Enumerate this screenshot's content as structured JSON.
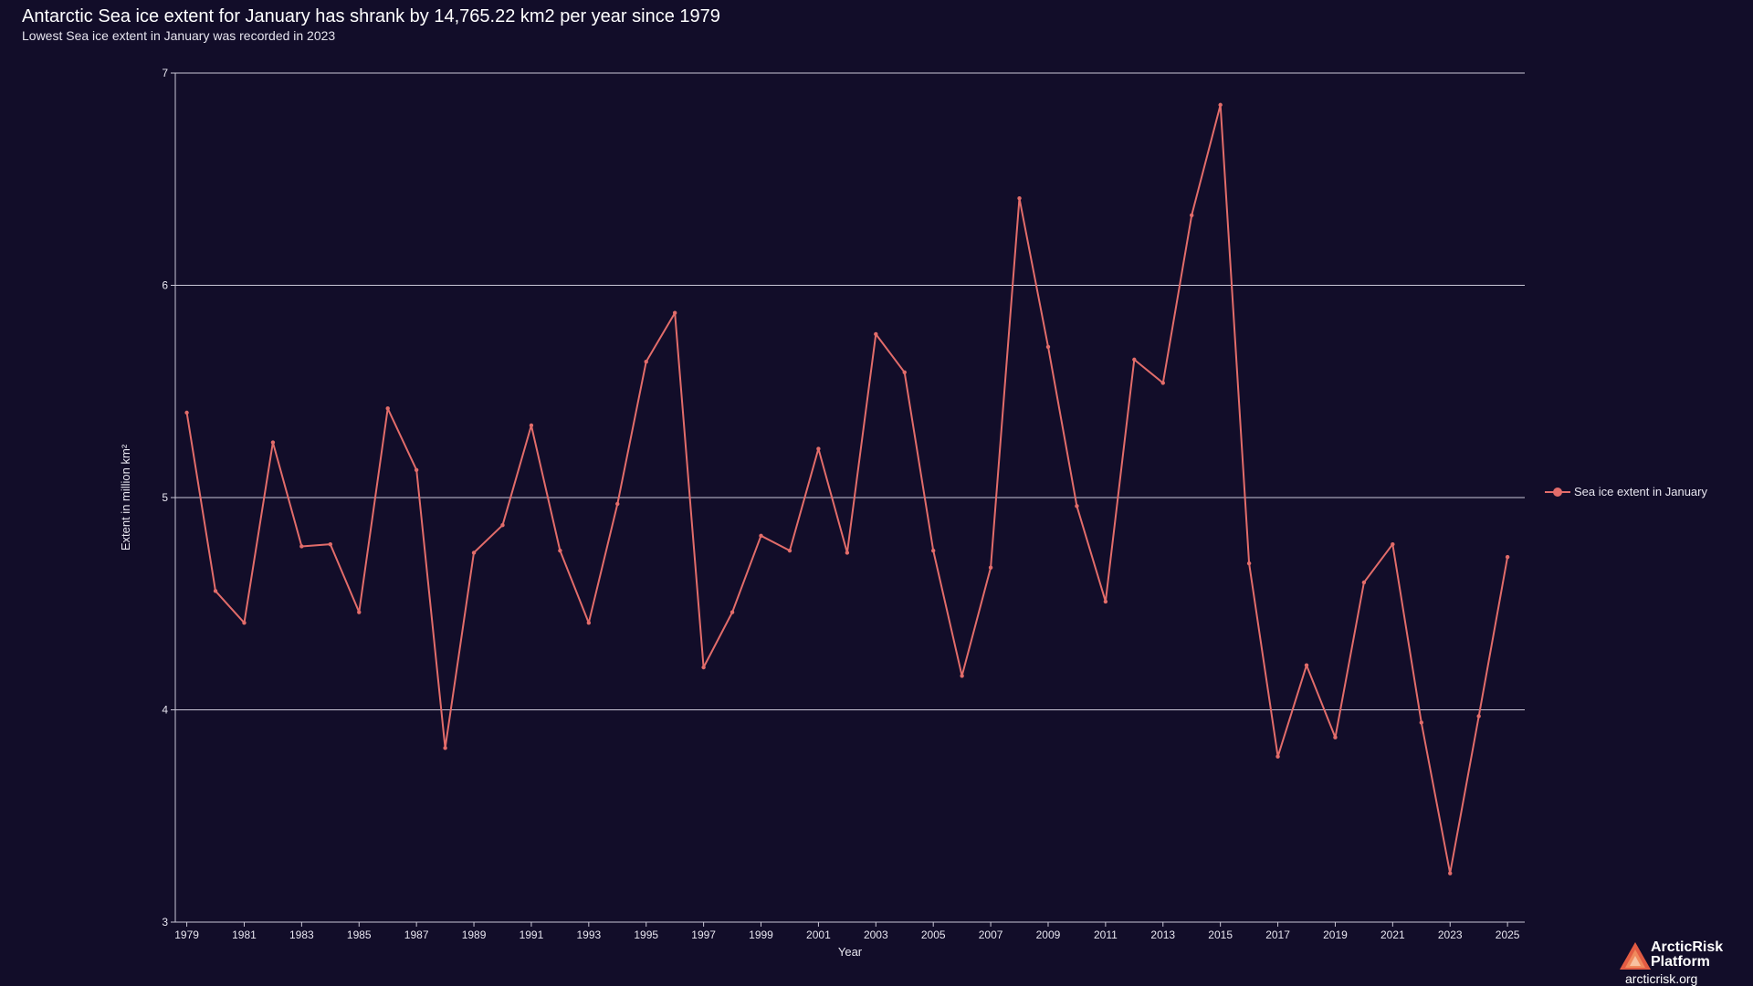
{
  "header": {
    "title": "Antarctic Sea ice extent for January has shrank by 14,765.22 km2 per year since 1979",
    "subtitle": "Lowest Sea ice extent in January was recorded in 2023"
  },
  "legend": {
    "label": "Sea ice extent in January"
  },
  "branding": {
    "name_line1": "ArcticRisk",
    "name_line2": "Platform",
    "url": "arcticrisk.org"
  },
  "colors": {
    "background": "#120d29",
    "line": "#e26c6a",
    "grid": "#c9c6d6",
    "text": "#e8e6f0"
  },
  "chart_data": {
    "type": "line",
    "title": "Antarctic Sea ice extent for January has shrank by 14,765.22 km2 per year since 1979",
    "subtitle": "Lowest Sea ice extent in January was recorded in 2023",
    "xlabel": "Year",
    "ylabel": "Extent in million km²",
    "ylim": [
      3,
      7
    ],
    "yticks": [
      3,
      4,
      5,
      6,
      7
    ],
    "xticks": [
      1979,
      1981,
      1983,
      1985,
      1987,
      1989,
      1991,
      1993,
      1995,
      1997,
      1999,
      2001,
      2003,
      2005,
      2007,
      2009,
      2011,
      2013,
      2015,
      2017,
      2019,
      2021,
      2023,
      2025
    ],
    "grid": "horizontal",
    "legend_position": "right",
    "series": [
      {
        "name": "Sea ice extent in January",
        "x": [
          1979,
          1980,
          1981,
          1982,
          1983,
          1984,
          1985,
          1986,
          1987,
          1988,
          1989,
          1990,
          1991,
          1992,
          1993,
          1994,
          1995,
          1996,
          1997,
          1998,
          1999,
          2000,
          2001,
          2002,
          2003,
          2004,
          2005,
          2006,
          2007,
          2008,
          2009,
          2010,
          2011,
          2012,
          2013,
          2014,
          2015,
          2016,
          2017,
          2018,
          2019,
          2020,
          2021,
          2022,
          2023,
          2024,
          2025
        ],
        "values": [
          5.4,
          4.56,
          4.41,
          5.26,
          4.77,
          4.78,
          4.46,
          5.42,
          5.13,
          3.82,
          4.74,
          4.87,
          5.34,
          4.75,
          4.41,
          4.97,
          5.64,
          5.87,
          4.2,
          4.46,
          4.82,
          4.75,
          5.23,
          4.74,
          5.77,
          5.59,
          4.75,
          4.16,
          4.67,
          6.41,
          5.71,
          4.96,
          4.51,
          5.65,
          5.54,
          6.33,
          6.85,
          4.69,
          3.78,
          4.21,
          3.87,
          4.6,
          4.78,
          3.94,
          3.23,
          3.97,
          4.72
        ]
      }
    ]
  }
}
